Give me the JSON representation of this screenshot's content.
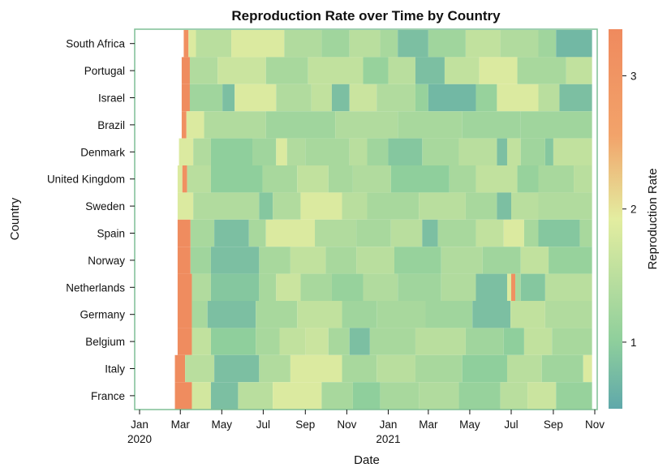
{
  "chart_data": {
    "type": "heatmap",
    "title": "Reproduction Rate over Time by Country",
    "xlabel": "Date",
    "ylabel": "Country",
    "colorbar_label": "Reproduction Rate",
    "x_range": [
      "2020-01-01",
      "2021-11-01"
    ],
    "x_ticks": [
      {
        "date": "2020-01-01",
        "label": "Jan",
        "sub": "2020"
      },
      {
        "date": "2020-03-01",
        "label": "Mar",
        "sub": ""
      },
      {
        "date": "2020-05-01",
        "label": "May",
        "sub": ""
      },
      {
        "date": "2020-07-01",
        "label": "Jul",
        "sub": ""
      },
      {
        "date": "2020-09-01",
        "label": "Sep",
        "sub": ""
      },
      {
        "date": "2020-11-01",
        "label": "Nov",
        "sub": ""
      },
      {
        "date": "2021-01-01",
        "label": "Jan",
        "sub": "2021"
      },
      {
        "date": "2021-03-01",
        "label": "Mar",
        "sub": ""
      },
      {
        "date": "2021-05-01",
        "label": "May",
        "sub": ""
      },
      {
        "date": "2021-07-01",
        "label": "Jul",
        "sub": ""
      },
      {
        "date": "2021-09-01",
        "label": "Sep",
        "sub": ""
      },
      {
        "date": "2021-11-01",
        "label": "Nov",
        "sub": ""
      }
    ],
    "colorbar": {
      "min": 0.5,
      "max": 3.35,
      "ticks": [
        1,
        2,
        3
      ]
    },
    "colors": [
      "#5fa8aa",
      "#8fcf9c",
      "#e3eda0",
      "#f2a36a",
      "#ef8a5e"
    ],
    "countries": [
      {
        "name": "South Africa",
        "segments": [
          [
            "2020-03-06",
            "2020-03-13",
            3.2
          ],
          [
            "2020-03-13",
            "2020-03-24",
            1.9
          ],
          [
            "2020-03-24",
            "2020-05-15",
            1.5
          ],
          [
            "2020-05-15",
            "2020-08-01",
            1.9
          ],
          [
            "2020-08-01",
            "2020-09-25",
            1.4
          ],
          [
            "2020-09-25",
            "2020-11-05",
            1.2
          ],
          [
            "2020-11-05",
            "2020-12-20",
            1.5
          ],
          [
            "2020-12-20",
            "2021-01-15",
            1.3
          ],
          [
            "2021-01-15",
            "2021-03-01",
            0.8
          ],
          [
            "2021-03-01",
            "2021-04-25",
            1.2
          ],
          [
            "2021-04-25",
            "2021-06-15",
            1.6
          ],
          [
            "2021-06-15",
            "2021-08-10",
            1.4
          ],
          [
            "2021-08-10",
            "2021-09-05",
            1.2
          ],
          [
            "2021-09-05",
            "2021-10-28",
            0.7
          ]
        ]
      },
      {
        "name": "Portugal",
        "segments": [
          [
            "2020-03-03",
            "2020-03-15",
            3.3
          ],
          [
            "2020-03-15",
            "2020-04-25",
            1.4
          ],
          [
            "2020-04-25",
            "2020-07-05",
            1.7
          ],
          [
            "2020-07-05",
            "2020-09-05",
            1.3
          ],
          [
            "2020-09-05",
            "2020-11-25",
            1.6
          ],
          [
            "2020-11-25",
            "2021-01-01",
            1.1
          ],
          [
            "2021-01-01",
            "2021-02-10",
            1.5
          ],
          [
            "2021-02-10",
            "2021-03-25",
            0.8
          ],
          [
            "2021-03-25",
            "2021-05-15",
            1.6
          ],
          [
            "2021-05-15",
            "2021-07-10",
            1.9
          ],
          [
            "2021-07-10",
            "2021-09-20",
            1.3
          ],
          [
            "2021-09-20",
            "2021-10-28",
            1.6
          ]
        ]
      },
      {
        "name": "Israel",
        "segments": [
          [
            "2020-03-03",
            "2020-03-15",
            3.3
          ],
          [
            "2020-03-15",
            "2020-05-02",
            1.2
          ],
          [
            "2020-05-02",
            "2020-05-20",
            0.8
          ],
          [
            "2020-05-20",
            "2020-07-20",
            1.9
          ],
          [
            "2020-07-20",
            "2020-09-10",
            1.4
          ],
          [
            "2020-09-10",
            "2020-10-10",
            1.6
          ],
          [
            "2020-10-10",
            "2020-11-05",
            0.8
          ],
          [
            "2020-11-05",
            "2020-12-15",
            1.7
          ],
          [
            "2020-12-15",
            "2021-02-10",
            1.4
          ],
          [
            "2021-02-10",
            "2021-03-01",
            1.1
          ],
          [
            "2021-03-01",
            "2021-05-10",
            0.7
          ],
          [
            "2021-05-10",
            "2021-06-10",
            1.1
          ],
          [
            "2021-06-10",
            "2021-08-10",
            1.9
          ],
          [
            "2021-08-10",
            "2021-09-10",
            1.5
          ],
          [
            "2021-09-10",
            "2021-10-28",
            0.8
          ]
        ]
      },
      {
        "name": "Brazil",
        "segments": [
          [
            "2020-03-03",
            "2020-03-10",
            3.2
          ],
          [
            "2020-03-10",
            "2020-04-05",
            1.9
          ],
          [
            "2020-04-05",
            "2020-07-05",
            1.4
          ],
          [
            "2020-07-05",
            "2020-10-15",
            1.2
          ],
          [
            "2020-10-15",
            "2021-01-15",
            1.4
          ],
          [
            "2021-01-15",
            "2021-04-20",
            1.3
          ],
          [
            "2021-04-20",
            "2021-07-15",
            1.2
          ],
          [
            "2021-07-15",
            "2021-10-28",
            1.2
          ]
        ]
      },
      {
        "name": "Denmark",
        "segments": [
          [
            "2020-02-28",
            "2020-03-20",
            1.9
          ],
          [
            "2020-03-20",
            "2020-04-15",
            1.4
          ],
          [
            "2020-04-15",
            "2020-06-15",
            1.0
          ],
          [
            "2020-06-15",
            "2020-07-20",
            1.2
          ],
          [
            "2020-07-20",
            "2020-08-05",
            1.9
          ],
          [
            "2020-08-05",
            "2020-09-01",
            1.4
          ],
          [
            "2020-09-01",
            "2020-11-05",
            1.3
          ],
          [
            "2020-11-05",
            "2020-12-01",
            1.5
          ],
          [
            "2020-12-01",
            "2021-01-01",
            1.2
          ],
          [
            "2021-01-01",
            "2021-02-20",
            0.9
          ],
          [
            "2021-02-20",
            "2021-04-15",
            1.3
          ],
          [
            "2021-04-15",
            "2021-06-10",
            1.5
          ],
          [
            "2021-06-10",
            "2021-06-25",
            0.8
          ],
          [
            "2021-06-25",
            "2021-07-15",
            1.6
          ],
          [
            "2021-07-15",
            "2021-08-20",
            1.2
          ],
          [
            "2021-08-20",
            "2021-09-01",
            0.9
          ],
          [
            "2021-09-01",
            "2021-10-28",
            1.6
          ]
        ]
      },
      {
        "name": "United Kingdom",
        "segments": [
          [
            "2020-02-26",
            "2020-03-04",
            1.9
          ],
          [
            "2020-03-04",
            "2020-03-11",
            3.2
          ],
          [
            "2020-03-11",
            "2020-04-15",
            1.5
          ],
          [
            "2020-04-15",
            "2020-06-30",
            1.0
          ],
          [
            "2020-06-30",
            "2020-08-20",
            1.3
          ],
          [
            "2020-08-20",
            "2020-10-05",
            1.6
          ],
          [
            "2020-10-05",
            "2020-11-10",
            1.3
          ],
          [
            "2020-11-10",
            "2021-01-05",
            1.4
          ],
          [
            "2021-01-05",
            "2021-04-01",
            1.0
          ],
          [
            "2021-04-01",
            "2021-05-10",
            1.3
          ],
          [
            "2021-05-10",
            "2021-07-10",
            1.6
          ],
          [
            "2021-07-10",
            "2021-08-10",
            1.1
          ],
          [
            "2021-08-10",
            "2021-10-01",
            1.3
          ],
          [
            "2021-10-01",
            "2021-10-28",
            1.5
          ]
        ]
      },
      {
        "name": "Sweden",
        "segments": [
          [
            "2020-02-26",
            "2020-03-20",
            1.9
          ],
          [
            "2020-03-20",
            "2020-06-25",
            1.4
          ],
          [
            "2020-06-25",
            "2020-07-15",
            0.9
          ],
          [
            "2020-07-15",
            "2020-08-25",
            1.4
          ],
          [
            "2020-08-25",
            "2020-10-25",
            1.9
          ],
          [
            "2020-10-25",
            "2020-12-01",
            1.5
          ],
          [
            "2020-12-01",
            "2021-02-15",
            1.3
          ],
          [
            "2021-02-15",
            "2021-04-25",
            1.5
          ],
          [
            "2021-04-25",
            "2021-06-10",
            1.3
          ],
          [
            "2021-06-10",
            "2021-07-01",
            0.8
          ],
          [
            "2021-07-01",
            "2021-08-10",
            1.5
          ],
          [
            "2021-08-10",
            "2021-10-28",
            1.4
          ]
        ]
      },
      {
        "name": "Spain",
        "segments": [
          [
            "2020-02-26",
            "2020-03-16",
            3.3
          ],
          [
            "2020-03-16",
            "2020-04-20",
            1.3
          ],
          [
            "2020-04-20",
            "2020-06-10",
            0.8
          ],
          [
            "2020-06-10",
            "2020-07-05",
            1.3
          ],
          [
            "2020-07-05",
            "2020-09-15",
            1.9
          ],
          [
            "2020-09-15",
            "2020-11-15",
            1.4
          ],
          [
            "2020-11-15",
            "2021-01-05",
            1.3
          ],
          [
            "2021-01-05",
            "2021-02-20",
            1.5
          ],
          [
            "2021-02-20",
            "2021-03-15",
            0.8
          ],
          [
            "2021-03-15",
            "2021-05-10",
            1.3
          ],
          [
            "2021-05-10",
            "2021-06-20",
            1.6
          ],
          [
            "2021-06-20",
            "2021-07-20",
            1.9
          ],
          [
            "2021-07-20",
            "2021-08-10",
            1.3
          ],
          [
            "2021-08-10",
            "2021-10-10",
            0.9
          ],
          [
            "2021-10-10",
            "2021-10-28",
            1.3
          ]
        ]
      },
      {
        "name": "Norway",
        "segments": [
          [
            "2020-02-26",
            "2020-03-16",
            3.3
          ],
          [
            "2020-03-16",
            "2020-04-15",
            1.2
          ],
          [
            "2020-04-15",
            "2020-06-25",
            0.8
          ],
          [
            "2020-06-25",
            "2020-08-10",
            1.3
          ],
          [
            "2020-08-10",
            "2020-10-01",
            1.6
          ],
          [
            "2020-10-01",
            "2020-11-15",
            1.3
          ],
          [
            "2020-11-15",
            "2021-01-10",
            1.5
          ],
          [
            "2021-01-10",
            "2021-03-20",
            1.1
          ],
          [
            "2021-03-20",
            "2021-05-20",
            1.4
          ],
          [
            "2021-05-20",
            "2021-07-15",
            1.2
          ],
          [
            "2021-07-15",
            "2021-08-25",
            1.6
          ],
          [
            "2021-08-25",
            "2021-10-28",
            1.1
          ]
        ]
      },
      {
        "name": "Netherlands",
        "segments": [
          [
            "2020-02-26",
            "2020-03-18",
            3.3
          ],
          [
            "2020-03-18",
            "2020-04-15",
            1.4
          ],
          [
            "2020-04-15",
            "2020-06-25",
            0.9
          ],
          [
            "2020-06-25",
            "2020-07-20",
            1.3
          ],
          [
            "2020-07-20",
            "2020-08-25",
            1.7
          ],
          [
            "2020-08-25",
            "2020-10-10",
            1.3
          ],
          [
            "2020-10-10",
            "2020-11-25",
            1.1
          ],
          [
            "2020-11-25",
            "2021-01-15",
            1.4
          ],
          [
            "2021-01-15",
            "2021-03-20",
            1.2
          ],
          [
            "2021-03-20",
            "2021-05-10",
            1.4
          ],
          [
            "2021-05-10",
            "2021-06-25",
            0.8
          ],
          [
            "2021-06-25",
            "2021-07-01",
            1.9
          ],
          [
            "2021-07-01",
            "2021-07-07",
            3.2
          ],
          [
            "2021-07-07",
            "2021-07-15",
            1.3
          ],
          [
            "2021-07-15",
            "2021-08-20",
            0.9
          ],
          [
            "2021-08-20",
            "2021-10-28",
            1.5
          ]
        ]
      },
      {
        "name": "Germany",
        "segments": [
          [
            "2020-02-26",
            "2020-03-18",
            3.3
          ],
          [
            "2020-03-18",
            "2020-04-10",
            1.3
          ],
          [
            "2020-04-10",
            "2020-06-20",
            0.8
          ],
          [
            "2020-06-20",
            "2020-08-20",
            1.3
          ],
          [
            "2020-08-20",
            "2020-10-25",
            1.6
          ],
          [
            "2020-10-25",
            "2020-12-15",
            1.2
          ],
          [
            "2020-12-15",
            "2021-02-25",
            1.3
          ],
          [
            "2021-02-25",
            "2021-05-05",
            1.2
          ],
          [
            "2021-05-05",
            "2021-06-30",
            0.8
          ],
          [
            "2021-06-30",
            "2021-08-20",
            1.6
          ],
          [
            "2021-08-20",
            "2021-10-28",
            1.4
          ]
        ]
      },
      {
        "name": "Belgium",
        "segments": [
          [
            "2020-02-26",
            "2020-03-18",
            3.3
          ],
          [
            "2020-03-18",
            "2020-04-15",
            1.6
          ],
          [
            "2020-04-15",
            "2020-06-20",
            1.0
          ],
          [
            "2020-06-20",
            "2020-07-25",
            1.3
          ],
          [
            "2020-07-25",
            "2020-09-01",
            1.6
          ],
          [
            "2020-09-01",
            "2020-10-05",
            1.7
          ],
          [
            "2020-10-05",
            "2020-11-05",
            1.3
          ],
          [
            "2020-11-05",
            "2020-12-05",
            0.8
          ],
          [
            "2020-12-05",
            "2021-02-10",
            1.3
          ],
          [
            "2021-02-10",
            "2021-04-25",
            1.5
          ],
          [
            "2021-04-25",
            "2021-06-20",
            1.2
          ],
          [
            "2021-06-20",
            "2021-07-20",
            1.0
          ],
          [
            "2021-07-20",
            "2021-08-30",
            1.6
          ],
          [
            "2021-08-30",
            "2021-10-28",
            1.3
          ]
        ]
      },
      {
        "name": "Italy",
        "segments": [
          [
            "2020-02-22",
            "2020-03-08",
            3.3
          ],
          [
            "2020-03-08",
            "2020-04-20",
            1.5
          ],
          [
            "2020-04-20",
            "2020-06-25",
            0.8
          ],
          [
            "2020-06-25",
            "2020-08-10",
            1.4
          ],
          [
            "2020-08-10",
            "2020-10-25",
            1.9
          ],
          [
            "2020-10-25",
            "2020-12-15",
            1.3
          ],
          [
            "2020-12-15",
            "2021-02-10",
            1.5
          ],
          [
            "2021-02-10",
            "2021-04-20",
            1.3
          ],
          [
            "2021-04-20",
            "2021-06-25",
            1.0
          ],
          [
            "2021-06-25",
            "2021-08-15",
            1.5
          ],
          [
            "2021-08-15",
            "2021-10-15",
            1.2
          ],
          [
            "2021-10-15",
            "2021-10-28",
            1.9
          ]
        ]
      },
      {
        "name": "France",
        "segments": [
          [
            "2020-02-22",
            "2020-03-18",
            3.3
          ],
          [
            "2020-03-18",
            "2020-04-15",
            1.8
          ],
          [
            "2020-04-15",
            "2020-05-25",
            0.8
          ],
          [
            "2020-05-25",
            "2020-07-15",
            1.5
          ],
          [
            "2020-07-15",
            "2020-09-25",
            1.9
          ],
          [
            "2020-09-25",
            "2020-11-10",
            1.3
          ],
          [
            "2020-11-10",
            "2020-12-20",
            1.0
          ],
          [
            "2020-12-20",
            "2021-02-15",
            1.3
          ],
          [
            "2021-02-15",
            "2021-04-15",
            1.4
          ],
          [
            "2021-04-15",
            "2021-06-15",
            1.1
          ],
          [
            "2021-06-15",
            "2021-07-25",
            1.5
          ],
          [
            "2021-07-25",
            "2021-09-05",
            1.7
          ],
          [
            "2021-09-05",
            "2021-10-28",
            1.1
          ]
        ]
      }
    ]
  }
}
